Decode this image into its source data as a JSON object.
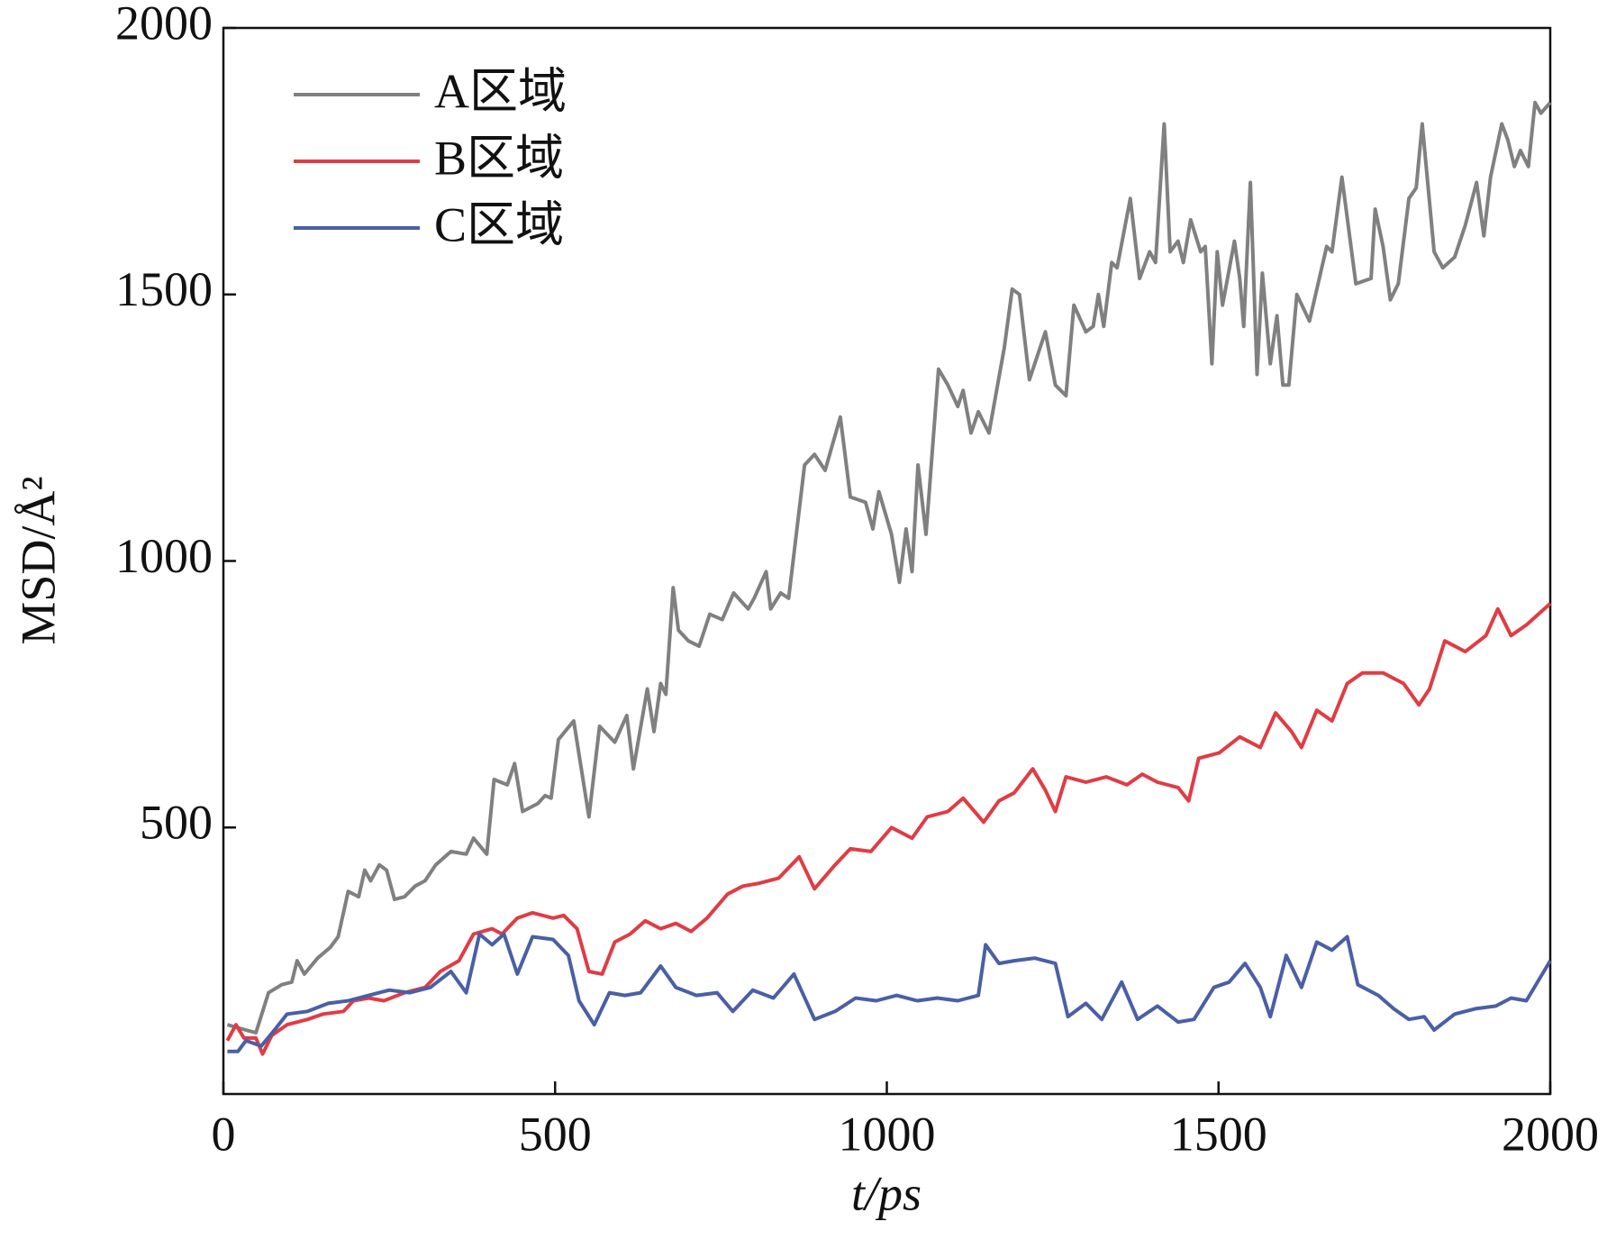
{
  "chart_data": {
    "type": "line",
    "xlabel": "t/ps",
    "ylabel": "MSD/Å²",
    "xlim": [
      0,
      2000
    ],
    "ylim": [
      0,
      2000
    ],
    "xticks": [
      0,
      500,
      1000,
      1500,
      2000
    ],
    "yticks": [
      500,
      1000,
      1500,
      2000
    ],
    "legend": "upper left",
    "series": [
      {
        "name": "A区域",
        "color": "#808080",
        "x": [
          6,
          34,
          49,
          68,
          88,
          103,
          111,
          122,
          142,
          161,
          173,
          188,
          204,
          213,
          222,
          235,
          246,
          258,
          273,
          289,
          304,
          320,
          343,
          366,
          377,
          397,
          408,
          428,
          439,
          451,
          474,
          485,
          494,
          505,
          528,
          551,
          567,
          590,
          608,
          618,
          639,
          649,
          659,
          667,
          678,
          686,
          701,
          717,
          733,
          752,
          769,
          791,
          800,
          818,
          825,
          840,
          852,
          876,
          891,
          907,
          930,
          945,
          968,
          979,
          988,
          1007,
          1019,
          1029,
          1038,
          1047,
          1059,
          1078,
          1092,
          1107,
          1115,
          1127,
          1138,
          1154,
          1177,
          1189,
          1200,
          1215,
          1239,
          1254,
          1270,
          1282,
          1300,
          1311,
          1319,
          1327,
          1339,
          1347,
          1367,
          1381,
          1396,
          1405,
          1418,
          1427,
          1439,
          1447,
          1458,
          1473,
          1480,
          1490,
          1498,
          1506,
          1524,
          1532,
          1538,
          1548,
          1558,
          1566,
          1578,
          1588,
          1597,
          1606,
          1618,
          1637,
          1663,
          1671,
          1686,
          1707,
          1730,
          1736,
          1748,
          1759,
          1771,
          1787,
          1798,
          1807,
          1825,
          1838,
          1856,
          1872,
          1889,
          1900,
          1910,
          1927,
          1936,
          1946,
          1955,
          1967,
          1977,
          1986,
          2000
        ],
        "values": [
          130,
          120,
          115,
          190,
          205,
          210,
          250,
          225,
          255,
          275,
          295,
          380,
          370,
          420,
          400,
          430,
          420,
          365,
          370,
          390,
          400,
          430,
          455,
          450,
          480,
          450,
          590,
          580,
          620,
          530,
          545,
          560,
          555,
          665,
          700,
          520,
          690,
          660,
          710,
          610,
          760,
          680,
          770,
          750,
          950,
          870,
          850,
          840,
          900,
          890,
          940,
          910,
          930,
          980,
          910,
          940,
          930,
          1180,
          1200,
          1170,
          1270,
          1120,
          1110,
          1060,
          1130,
          1050,
          960,
          1060,
          980,
          1180,
          1050,
          1360,
          1330,
          1290,
          1320,
          1240,
          1280,
          1240,
          1400,
          1510,
          1500,
          1340,
          1430,
          1330,
          1310,
          1480,
          1430,
          1440,
          1500,
          1440,
          1560,
          1550,
          1680,
          1530,
          1580,
          1560,
          1820,
          1580,
          1600,
          1560,
          1640,
          1580,
          1590,
          1370,
          1580,
          1480,
          1600,
          1530,
          1440,
          1710,
          1350,
          1540,
          1370,
          1460,
          1330,
          1330,
          1500,
          1450,
          1590,
          1580,
          1720,
          1520,
          1530,
          1660,
          1590,
          1490,
          1520,
          1680,
          1700,
          1820,
          1580,
          1550,
          1570,
          1630,
          1710,
          1610,
          1720,
          1820,
          1790,
          1740,
          1770,
          1740,
          1860,
          1840,
          1860
        ]
      },
      {
        "name": "B区域",
        "color": "#e03c44",
        "x": [
          6,
          19,
          31,
          49,
          59,
          73,
          96,
          127,
          150,
          181,
          196,
          219,
          242,
          273,
          304,
          327,
          355,
          377,
          405,
          420,
          443,
          466,
          497,
          513,
          533,
          551,
          571,
          590,
          613,
          636,
          659,
          682,
          705,
          729,
          760,
          783,
          806,
          837,
          868,
          891,
          922,
          945,
          976,
          1007,
          1038,
          1061,
          1092,
          1115,
          1146,
          1169,
          1192,
          1220,
          1239,
          1254,
          1270,
          1300,
          1331,
          1362,
          1385,
          1408,
          1439,
          1455,
          1470,
          1501,
          1532,
          1563,
          1586,
          1610,
          1625,
          1648,
          1671,
          1694,
          1717,
          1748,
          1779,
          1802,
          1818,
          1841,
          1872,
          1903,
          1921,
          1941,
          1964,
          2000
        ],
        "values": [
          100,
          130,
          105,
          105,
          75,
          110,
          130,
          140,
          150,
          155,
          175,
          180,
          175,
          190,
          200,
          230,
          250,
          300,
          310,
          300,
          330,
          340,
          330,
          335,
          310,
          230,
          225,
          285,
          300,
          325,
          310,
          320,
          305,
          330,
          375,
          390,
          395,
          405,
          445,
          385,
          430,
          460,
          455,
          500,
          480,
          520,
          530,
          555,
          510,
          550,
          565,
          610,
          570,
          530,
          595,
          585,
          595,
          580,
          600,
          585,
          575,
          550,
          630,
          640,
          670,
          650,
          715,
          680,
          650,
          720,
          700,
          770,
          790,
          790,
          770,
          730,
          760,
          850,
          830,
          860,
          910,
          860,
          880,
          920
        ]
      },
      {
        "name": "C区域",
        "color": "#4a5fa5",
        "x": [
          6,
          22,
          34,
          57,
          77,
          96,
          127,
          158,
          188,
          219,
          250,
          281,
          312,
          343,
          366,
          386,
          405,
          423,
          443,
          466,
          497,
          520,
          536,
          559,
          582,
          605,
          629,
          659,
          682,
          713,
          744,
          768,
          798,
          829,
          860,
          891,
          922,
          953,
          984,
          1015,
          1046,
          1076,
          1107,
          1138,
          1149,
          1169,
          1192,
          1223,
          1254,
          1273,
          1300,
          1324,
          1354,
          1378,
          1408,
          1439,
          1463,
          1493,
          1516,
          1540,
          1563,
          1578,
          1602,
          1625,
          1648,
          1671,
          1694,
          1710,
          1741,
          1764,
          1787,
          1810,
          1825,
          1856,
          1887,
          1918,
          1941,
          1964,
          2000
        ],
        "values": [
          80,
          80,
          100,
          90,
          120,
          150,
          155,
          170,
          175,
          185,
          195,
          190,
          200,
          230,
          190,
          300,
          280,
          300,
          225,
          295,
          290,
          260,
          175,
          130,
          190,
          185,
          190,
          240,
          200,
          185,
          190,
          155,
          195,
          180,
          225,
          140,
          155,
          180,
          175,
          185,
          175,
          180,
          175,
          185,
          280,
          245,
          250,
          255,
          245,
          145,
          170,
          140,
          210,
          140,
          165,
          135,
          140,
          200,
          210,
          245,
          200,
          145,
          260,
          200,
          285,
          270,
          295,
          205,
          185,
          160,
          140,
          145,
          120,
          150,
          160,
          165,
          180,
          175,
          250
        ]
      }
    ]
  }
}
